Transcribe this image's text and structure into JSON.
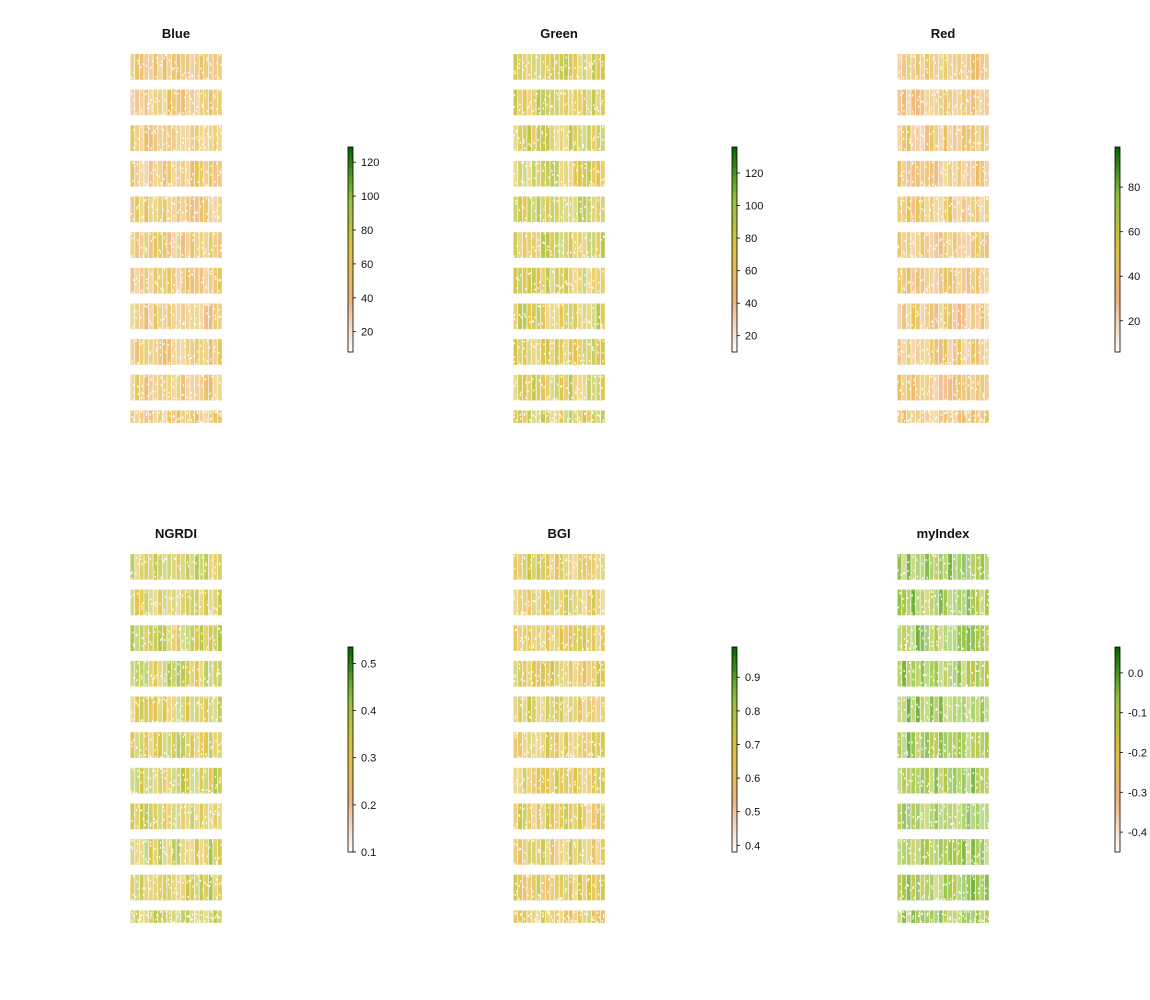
{
  "chart_data": [
    {
      "type": "heatmap",
      "title": "Blue",
      "plot_grid": {
        "rows": 11,
        "cols": 10
      },
      "legend": {
        "placement": "right",
        "range": [
          8,
          129
        ],
        "ticks": [
          20,
          40,
          60,
          80,
          100,
          120
        ],
        "tick_labels": [
          "20",
          "40",
          "60",
          "80",
          "100",
          "120"
        ],
        "dominant_value": 55
      }
    },
    {
      "type": "heatmap",
      "title": "Green",
      "plot_grid": {
        "rows": 11,
        "cols": 10
      },
      "legend": {
        "placement": "right",
        "range": [
          10,
          136
        ],
        "ticks": [
          20,
          40,
          60,
          80,
          100,
          120
        ],
        "tick_labels": [
          "20",
          "40",
          "60",
          "80",
          "100",
          "120"
        ],
        "dominant_value": 80
      }
    },
    {
      "type": "heatmap",
      "title": "Red",
      "plot_grid": {
        "rows": 11,
        "cols": 10
      },
      "legend": {
        "placement": "right",
        "range": [
          6,
          98
        ],
        "ticks": [
          20,
          40,
          60,
          80
        ],
        "tick_labels": [
          "20",
          "40",
          "60",
          "80"
        ],
        "dominant_value": 40
      }
    },
    {
      "type": "heatmap",
      "title": "NGRDI",
      "plot_grid": {
        "rows": 11,
        "cols": 10
      },
      "legend": {
        "placement": "right",
        "range": [
          0.1,
          0.535
        ],
        "ticks": [
          0.1,
          0.2,
          0.3,
          0.4,
          0.5
        ],
        "tick_labels": [
          "0.1",
          "0.2",
          "0.3",
          "0.4",
          "0.5"
        ],
        "dominant_value": 0.35
      }
    },
    {
      "type": "heatmap",
      "title": "BGI",
      "plot_grid": {
        "rows": 11,
        "cols": 10
      },
      "legend": {
        "placement": "right",
        "range": [
          0.38,
          0.99
        ],
        "ticks": [
          0.4,
          0.5,
          0.6,
          0.7,
          0.8,
          0.9
        ],
        "tick_labels": [
          "0.4",
          "0.5",
          "0.6",
          "0.7",
          "0.8",
          "0.9"
        ],
        "dominant_value": 0.68
      }
    },
    {
      "type": "heatmap",
      "title": "myIndex",
      "plot_grid": {
        "rows": 11,
        "cols": 10
      },
      "legend": {
        "placement": "right",
        "range": [
          -0.45,
          0.065
        ],
        "ticks": [
          -0.4,
          -0.3,
          -0.2,
          -0.1,
          0.0
        ],
        "tick_labels": [
          "-0.4",
          "-0.3",
          "-0.2",
          "-0.1",
          "0.0"
        ],
        "dominant_value": -0.08
      }
    }
  ],
  "colors": {
    "ramp": [
      "#ffffff",
      "#f2b27f",
      "#e1c13c",
      "#8fc33a",
      "#006400"
    ],
    "text": "#111111",
    "outline": "#000000"
  }
}
